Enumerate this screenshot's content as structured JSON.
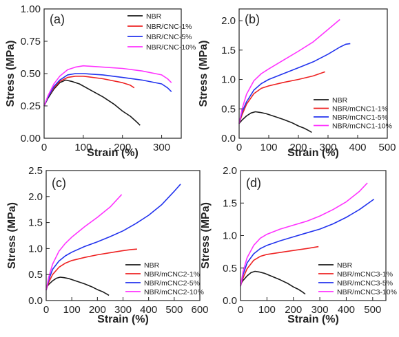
{
  "colors": {
    "black": "#1a1a1a",
    "red": "#ee2222",
    "blue": "#2233ee",
    "magenta": "#ff33ff"
  },
  "chart_data": [
    {
      "type": "line",
      "panel_label": "(a)",
      "xlabel": "Strain (%)",
      "ylabel": "Stress (MPa)",
      "xlim": [
        0,
        350
      ],
      "ylim": [
        0,
        1.0
      ],
      "xticks": [
        0,
        100,
        200,
        300
      ],
      "yticks": [
        0.0,
        0.25,
        0.5,
        0.75,
        1.0
      ],
      "ytick_labels": [
        "0.00",
        "0.25",
        "0.50",
        "0.75",
        "1.00"
      ],
      "legend_position": "top-right",
      "series": [
        {
          "name": "NBR",
          "color": "black",
          "x": [
            0,
            10,
            25,
            40,
            55,
            70,
            90,
            120,
            150,
            180,
            200,
            220,
            235,
            245
          ],
          "y": [
            0.25,
            0.31,
            0.38,
            0.43,
            0.45,
            0.44,
            0.42,
            0.37,
            0.32,
            0.26,
            0.21,
            0.17,
            0.13,
            0.1
          ]
        },
        {
          "name": "NBR/CNC-1%",
          "color": "red",
          "x": [
            0,
            10,
            25,
            40,
            60,
            80,
            100,
            150,
            200,
            220,
            230
          ],
          "y": [
            0.25,
            0.32,
            0.39,
            0.44,
            0.47,
            0.48,
            0.48,
            0.46,
            0.43,
            0.41,
            0.39
          ]
        },
        {
          "name": "NBR/CNC-5%",
          "color": "blue",
          "x": [
            0,
            10,
            25,
            40,
            60,
            80,
            100,
            150,
            200,
            250,
            300,
            315,
            325
          ],
          "y": [
            0.25,
            0.32,
            0.4,
            0.45,
            0.49,
            0.5,
            0.5,
            0.49,
            0.47,
            0.45,
            0.42,
            0.39,
            0.36
          ]
        },
        {
          "name": "NBR/CNC-10%",
          "color": "magenta",
          "x": [
            0,
            10,
            25,
            40,
            60,
            80,
            100,
            150,
            200,
            250,
            300,
            315,
            325
          ],
          "y": [
            0.25,
            0.33,
            0.42,
            0.48,
            0.53,
            0.55,
            0.56,
            0.55,
            0.54,
            0.52,
            0.49,
            0.46,
            0.43
          ]
        }
      ]
    },
    {
      "type": "line",
      "panel_label": "(b)",
      "xlabel": "Strain (%)",
      "ylabel": "Stress (MPa)",
      "xlim": [
        0,
        500
      ],
      "ylim": [
        0,
        2.2
      ],
      "xticks": [
        0,
        100,
        200,
        300,
        400,
        500
      ],
      "yticks": [
        0.0,
        0.5,
        1.0,
        1.5,
        2.0
      ],
      "ytick_labels": [
        "0.0",
        "0.5",
        "1.0",
        "1.5",
        "2.0"
      ],
      "legend_position": "bottom-right",
      "series": [
        {
          "name": "NBR",
          "color": "black",
          "x": [
            0,
            10,
            25,
            40,
            55,
            70,
            90,
            120,
            150,
            180,
            200,
            220,
            235,
            245
          ],
          "y": [
            0.25,
            0.31,
            0.38,
            0.43,
            0.45,
            0.44,
            0.42,
            0.37,
            0.32,
            0.26,
            0.21,
            0.17,
            0.13,
            0.1
          ]
        },
        {
          "name": "NBR/mCNC1-1%",
          "color": "red",
          "x": [
            0,
            10,
            25,
            50,
            75,
            100,
            150,
            200,
            250,
            290
          ],
          "y": [
            0.25,
            0.4,
            0.58,
            0.76,
            0.85,
            0.89,
            0.95,
            1.0,
            1.06,
            1.13
          ]
        },
        {
          "name": "NBR/mCNC1-5%",
          "color": "blue",
          "x": [
            0,
            10,
            25,
            50,
            75,
            100,
            150,
            200,
            250,
            300,
            340,
            360,
            375
          ],
          "y": [
            0.25,
            0.45,
            0.62,
            0.82,
            0.93,
            1.0,
            1.1,
            1.2,
            1.3,
            1.43,
            1.55,
            1.6,
            1.61
          ]
        },
        {
          "name": "NBR/mCNC1-10%",
          "color": "magenta",
          "x": [
            0,
            10,
            25,
            50,
            75,
            100,
            150,
            200,
            250,
            300,
            340
          ],
          "y": [
            0.25,
            0.5,
            0.75,
            0.98,
            1.1,
            1.18,
            1.33,
            1.48,
            1.64,
            1.85,
            2.02
          ]
        }
      ]
    },
    {
      "type": "line",
      "panel_label": "(c)",
      "xlabel": "Strain (%)",
      "ylabel": "Stress (MPa)",
      "xlim": [
        0,
        600
      ],
      "ylim": [
        0,
        2.5
      ],
      "xticks": [
        0,
        100,
        200,
        300,
        400,
        500,
        600
      ],
      "yticks": [
        0.0,
        0.5,
        1.0,
        1.5,
        2.0,
        2.5
      ],
      "ytick_labels": [
        "0.0",
        "0.5",
        "1.0",
        "1.5",
        "2.0",
        "2.5"
      ],
      "legend_position": "bottom-right",
      "series": [
        {
          "name": "NBR",
          "color": "black",
          "x": [
            0,
            10,
            25,
            40,
            55,
            70,
            90,
            120,
            150,
            180,
            200,
            220,
            235,
            245
          ],
          "y": [
            0.25,
            0.31,
            0.38,
            0.43,
            0.45,
            0.44,
            0.42,
            0.37,
            0.32,
            0.26,
            0.21,
            0.17,
            0.13,
            0.1
          ]
        },
        {
          "name": "NBR/mCNC2-1%",
          "color": "red",
          "x": [
            0,
            10,
            25,
            50,
            75,
            100,
            150,
            200,
            250,
            300,
            330,
            355
          ],
          "y": [
            0.2,
            0.35,
            0.5,
            0.64,
            0.72,
            0.77,
            0.83,
            0.88,
            0.92,
            0.96,
            0.98,
            0.99
          ]
        },
        {
          "name": "NBR/mCNC2-5%",
          "color": "blue",
          "x": [
            0,
            10,
            25,
            50,
            75,
            100,
            150,
            200,
            250,
            300,
            350,
            400,
            450,
            500,
            525
          ],
          "y": [
            0.2,
            0.4,
            0.6,
            0.76,
            0.86,
            0.93,
            1.04,
            1.13,
            1.23,
            1.34,
            1.48,
            1.64,
            1.84,
            2.1,
            2.24
          ]
        },
        {
          "name": "NBR/mCNC2-10%",
          "color": "magenta",
          "x": [
            0,
            10,
            25,
            50,
            75,
            100,
            150,
            200,
            250,
            295
          ],
          "y": [
            0.2,
            0.45,
            0.7,
            0.95,
            1.1,
            1.22,
            1.42,
            1.6,
            1.8,
            2.04
          ]
        }
      ]
    },
    {
      "type": "line",
      "panel_label": "(d)",
      "xlabel": "Strain (%)",
      "ylabel": "Stress (MPa)",
      "xlim": [
        0,
        550
      ],
      "ylim": [
        0,
        2.0
      ],
      "xticks": [
        0,
        100,
        200,
        300,
        400,
        500
      ],
      "yticks": [
        0.0,
        0.5,
        1.0,
        1.5,
        2.0
      ],
      "ytick_labels": [
        "0.0",
        "0.5",
        "1.0",
        "1.5",
        "2.0"
      ],
      "legend_position": "bottom-right",
      "series": [
        {
          "name": "NBR",
          "color": "black",
          "x": [
            0,
            10,
            25,
            40,
            55,
            70,
            90,
            120,
            150,
            180,
            200,
            220,
            235,
            245
          ],
          "y": [
            0.25,
            0.31,
            0.38,
            0.43,
            0.45,
            0.44,
            0.42,
            0.37,
            0.32,
            0.26,
            0.21,
            0.17,
            0.13,
            0.1
          ]
        },
        {
          "name": "NBR/mCNC3-1%",
          "color": "red",
          "x": [
            0,
            10,
            25,
            50,
            75,
            100,
            150,
            200,
            250,
            295
          ],
          "y": [
            0.22,
            0.35,
            0.49,
            0.62,
            0.68,
            0.71,
            0.74,
            0.77,
            0.8,
            0.83
          ]
        },
        {
          "name": "NBR/mCNC3-5%",
          "color": "blue",
          "x": [
            0,
            10,
            25,
            50,
            75,
            100,
            150,
            200,
            250,
            300,
            350,
            400,
            450,
            505
          ],
          "y": [
            0.22,
            0.4,
            0.58,
            0.72,
            0.8,
            0.85,
            0.92,
            0.98,
            1.04,
            1.1,
            1.18,
            1.28,
            1.4,
            1.56
          ]
        },
        {
          "name": "NBR/mCNC3-10%",
          "color": "magenta",
          "x": [
            0,
            10,
            25,
            50,
            75,
            100,
            150,
            200,
            250,
            300,
            350,
            400,
            450,
            480
          ],
          "y": [
            0.22,
            0.45,
            0.66,
            0.85,
            0.96,
            1.02,
            1.1,
            1.16,
            1.22,
            1.3,
            1.4,
            1.52,
            1.68,
            1.81
          ]
        }
      ]
    }
  ]
}
